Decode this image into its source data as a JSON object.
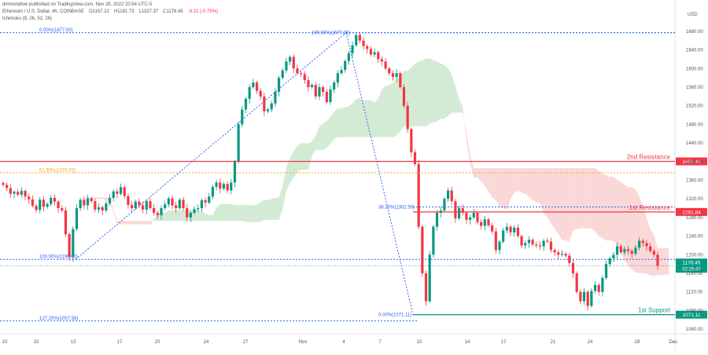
{
  "header": {
    "published_line": "dmmondlow published on TradingView.com, Nov 28, 2022 20:54 UTC-5",
    "symbol_line": "Ethereum / U.S. Dollar, 4h, COINBASE",
    "ohlc": [
      "O1167.22",
      "H1181.73",
      "L1157.37",
      "C1176.45",
      "-9.21 (-0.79%)"
    ],
    "indicator_line": "Ichimoku (9, 26, 52, 26)"
  },
  "chart_data": {
    "type": "candlestick",
    "currency": "USD",
    "y_range": [
      1030,
      1700
    ],
    "y_ticks": [
      1680,
      1640,
      1600,
      1560,
      1520,
      1480,
      1440,
      1400,
      1360,
      1320,
      1280,
      1240,
      1200,
      1160,
      1120,
      1080,
      1040
    ],
    "x_ticks": [
      "Oct 10",
      "10",
      "13",
      "17",
      "20",
      "24",
      "27",
      "Nov",
      "4",
      "7",
      "10",
      "14",
      "17",
      "21",
      "24",
      "28",
      "Dec"
    ],
    "x_tick_labels": [
      "10",
      "10",
      "13",
      "17",
      "20",
      "24",
      "27",
      "Nov",
      "4",
      "7",
      "10",
      "14",
      "17",
      "21",
      "24",
      "28",
      "Dec"
    ],
    "levels": [
      {
        "name": "2nd Resistance",
        "price": 1400.48,
        "label": "1400.48",
        "color": "#f23645"
      },
      {
        "name": "1st Resistance",
        "price": 1291.84,
        "label": "1291.84",
        "color": "#f23645"
      },
      {
        "name": "1st Support",
        "price": 1071.11,
        "label": "1071.11",
        "color": "#089981"
      }
    ],
    "current_price": {
      "label": "1176.45",
      "countdown": "02:25:47",
      "price": 1176.45
    },
    "fib_left": [
      {
        "label": "0.00%(1677.00)",
        "price": 1677.0
      },
      {
        "label": "61.80%(1376.03)",
        "price": 1376.03
      },
      {
        "label": "100.00%(1190.00)",
        "price": 1190.0
      },
      {
        "label": "127.20%(1057.56)",
        "price": 1057.56
      }
    ],
    "fib_right": [
      {
        "label": "100.00%(1677.00)",
        "price": 1677.0
      },
      {
        "label": "38.20%(1302.56)",
        "price": 1302.56
      },
      {
        "label": "0.00%(1071.11)",
        "price": 1071.11
      }
    ],
    "close_series": [
      1350,
      1343,
      1331,
      1335,
      1329,
      1337,
      1325,
      1319,
      1305,
      1296,
      1318,
      1303,
      1309,
      1322,
      1314,
      1300,
      1295,
      1244,
      1195,
      1255,
      1300,
      1318,
      1306,
      1321,
      1315,
      1297,
      1302,
      1295,
      1310,
      1322,
      1336,
      1331,
      1345,
      1326,
      1307,
      1300,
      1314,
      1306,
      1297,
      1315,
      1300,
      1290,
      1285,
      1300,
      1308,
      1321,
      1306,
      1300,
      1318,
      1300,
      1280,
      1290,
      1298,
      1300,
      1317,
      1312,
      1325,
      1346,
      1355,
      1342,
      1352,
      1338,
      1355,
      1400,
      1480,
      1512,
      1535,
      1560,
      1570,
      1552,
      1540,
      1508,
      1512,
      1525,
      1550,
      1580,
      1596,
      1615,
      1625,
      1600,
      1590,
      1588,
      1575,
      1560,
      1565,
      1540,
      1560,
      1550,
      1528,
      1555,
      1570,
      1590,
      1597,
      1616,
      1633,
      1650,
      1672,
      1660,
      1648,
      1642,
      1630,
      1635,
      1620,
      1615,
      1600,
      1590,
      1582,
      1590,
      1560,
      1520,
      1470,
      1420,
      1395,
      1260,
      1160,
      1100,
      1200,
      1260,
      1290,
      1295,
      1320,
      1338,
      1315,
      1278,
      1300,
      1290,
      1275,
      1280,
      1290,
      1270,
      1262,
      1276,
      1263,
      1250,
      1210,
      1228,
      1252,
      1260,
      1248,
      1258,
      1240,
      1220,
      1225,
      1232,
      1222,
      1220,
      1218,
      1230,
      1228,
      1210,
      1205,
      1200,
      1202,
      1198,
      1182,
      1160,
      1120,
      1100,
      1120,
      1090,
      1122,
      1135,
      1120,
      1150,
      1180,
      1192,
      1200,
      1218,
      1205,
      1212,
      1208,
      1202,
      1215,
      1230,
      1225,
      1218,
      1208,
      1200,
      1176
    ]
  }
}
